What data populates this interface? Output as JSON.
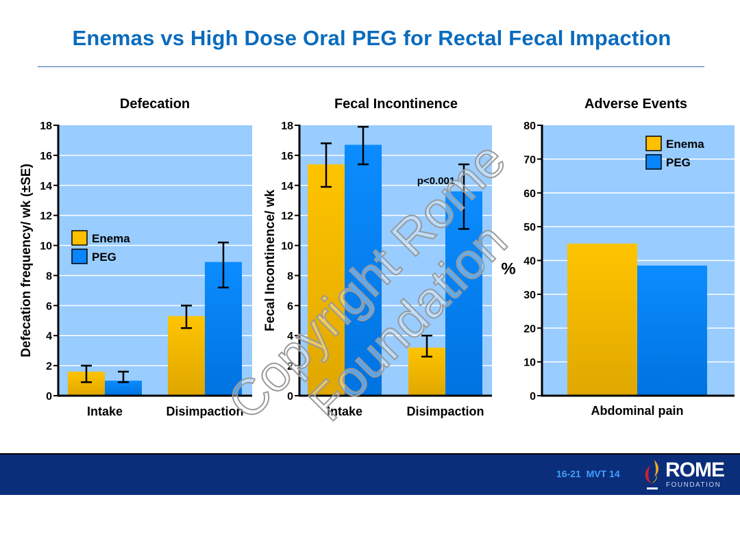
{
  "slide": {
    "title": "Enemas vs High Dose Oral PEG for Rectal Fecal Impaction",
    "footer_code": "16-21  MVT 14",
    "logo_text": "ROME",
    "logo_subtext": "FOUNDATION",
    "watermark": "Copyright Rome Foundation"
  },
  "colors": {
    "title": "#0a6bbd",
    "plot_background": "#99ccff",
    "enema": "#ffc000",
    "peg": "#0a84ff",
    "footer_background": "#0b2e7a"
  },
  "chart_data": [
    {
      "type": "bar",
      "title": "Defecation",
      "xlabel": "",
      "ylabel": "Defecation frequency/ wk (±SE)",
      "categories": [
        "Intake",
        "Disimpaction"
      ],
      "ylim": [
        0,
        18
      ],
      "yticks": [
        0,
        2,
        4,
        6,
        8,
        10,
        12,
        14,
        16,
        18
      ],
      "grid": true,
      "legend": "left-middle",
      "series": [
        {
          "name": "Enema",
          "values": [
            1.6,
            5.3
          ],
          "error_low": [
            0.9,
            4.5
          ],
          "error_high": [
            2.0,
            6.0
          ]
        },
        {
          "name": "PEG",
          "values": [
            1.0,
            8.9
          ],
          "error_low": [
            0.9,
            7.2
          ],
          "error_high": [
            1.6,
            10.2
          ]
        }
      ],
      "annotations": []
    },
    {
      "type": "bar",
      "title": "Fecal Incontinence",
      "xlabel": "",
      "ylabel": "Fecal Incontinence/ wk",
      "categories": [
        "Intake",
        "Disimpaction"
      ],
      "ylim": [
        0,
        18
      ],
      "yticks": [
        0,
        2,
        4,
        6,
        8,
        10,
        12,
        14,
        16,
        18
      ],
      "grid": true,
      "legend": "none",
      "series": [
        {
          "name": "Enema",
          "values": [
            15.4,
            3.2
          ],
          "error_low": [
            13.9,
            2.6
          ],
          "error_high": [
            16.8,
            4.0
          ]
        },
        {
          "name": "PEG",
          "values": [
            16.7,
            13.6
          ],
          "error_low": [
            15.4,
            11.1
          ],
          "error_high": [
            17.9,
            15.4
          ]
        }
      ],
      "annotations": [
        {
          "text": "p<0.001",
          "category": "Disimpaction",
          "y": 14.3
        }
      ]
    },
    {
      "type": "bar",
      "title": "Adverse Events",
      "xlabel": "",
      "ylabel": "%",
      "categories": [
        "Abdominal pain"
      ],
      "ylim": [
        0,
        80
      ],
      "yticks": [
        0,
        10,
        20,
        30,
        40,
        50,
        60,
        70,
        80
      ],
      "grid": true,
      "legend": "top-right",
      "series": [
        {
          "name": "Enema",
          "values": [
            45
          ]
        },
        {
          "name": "PEG",
          "values": [
            38.5
          ]
        }
      ],
      "annotations": []
    }
  ]
}
